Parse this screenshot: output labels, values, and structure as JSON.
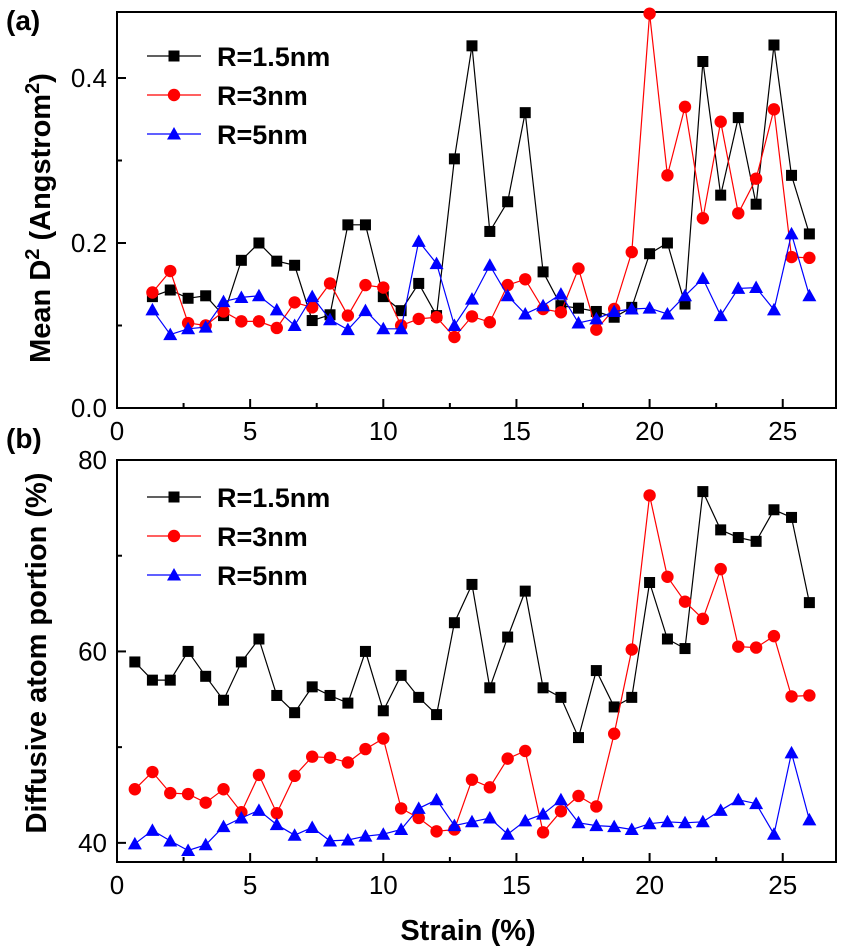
{
  "chart_data": [
    {
      "panel_label": "(a)",
      "type": "line",
      "xlabel": "",
      "ylabel": "Mean D2 (Angstrom2)",
      "ylabel_parts": [
        "Mean D",
        "2",
        " (Angstrom",
        "2",
        ")"
      ],
      "xlim": [
        0,
        27
      ],
      "ylim": [
        0,
        0.48
      ],
      "xticks": [
        0,
        5,
        10,
        15,
        20,
        25
      ],
      "yticks": [
        0.0,
        0.2,
        0.4
      ],
      "ytick_labels": [
        "0.0",
        "0.2",
        "0.4"
      ],
      "legend_position": "top-left",
      "series": [
        {
          "name": "R=1.5nm",
          "color": "#000000",
          "marker": "square",
          "x": [
            1.33,
            2.0,
            2.67,
            3.33,
            4.0,
            4.67,
            5.33,
            6.0,
            6.67,
            7.33,
            8.0,
            8.67,
            9.33,
            10.0,
            10.67,
            11.33,
            12.0,
            12.67,
            13.33,
            14.0,
            14.67,
            15.33,
            16.0,
            16.67,
            17.33,
            18.0,
            18.67,
            19.33,
            20.0,
            20.67,
            21.33,
            22.0,
            22.67,
            23.33,
            24.0,
            24.67,
            25.33,
            26.0
          ],
          "y": [
            0.135,
            0.143,
            0.133,
            0.136,
            0.112,
            0.179,
            0.2,
            0.178,
            0.173,
            0.106,
            0.113,
            0.222,
            0.222,
            0.135,
            0.118,
            0.151,
            0.112,
            0.302,
            0.439,
            0.214,
            0.25,
            0.358,
            0.165,
            0.124,
            0.121,
            0.117,
            0.11,
            0.122,
            0.187,
            0.2,
            0.126,
            0.42,
            0.258,
            0.352,
            0.247,
            0.44,
            0.282,
            0.211
          ]
        },
        {
          "name": "R=3nm",
          "color": "#ff0000",
          "marker": "circle",
          "x": [
            1.33,
            2.0,
            2.67,
            3.33,
            4.0,
            4.67,
            5.33,
            6.0,
            6.67,
            7.33,
            8.0,
            8.67,
            9.33,
            10.0,
            10.67,
            11.33,
            12.0,
            12.67,
            13.33,
            14.0,
            14.67,
            15.33,
            16.0,
            16.67,
            17.33,
            18.0,
            18.67,
            19.33,
            20.0,
            20.67,
            21.33,
            22.0,
            22.67,
            23.33,
            24.0,
            24.67,
            25.33,
            26.0
          ],
          "y": [
            0.14,
            0.166,
            0.103,
            0.1,
            0.117,
            0.105,
            0.105,
            0.097,
            0.128,
            0.122,
            0.151,
            0.112,
            0.149,
            0.146,
            0.1,
            0.108,
            0.11,
            0.086,
            0.111,
            0.104,
            0.149,
            0.156,
            0.12,
            0.116,
            0.169,
            0.095,
            0.12,
            0.189,
            0.478,
            0.282,
            0.365,
            0.23,
            0.347,
            0.236,
            0.278,
            0.362,
            0.183,
            0.182
          ]
        },
        {
          "name": "R=5nm",
          "color": "#0000ff",
          "marker": "triangle",
          "x": [
            1.33,
            2.0,
            2.67,
            3.33,
            4.0,
            4.67,
            5.33,
            6.0,
            6.67,
            7.33,
            8.0,
            8.67,
            9.33,
            10.0,
            10.67,
            11.33,
            12.0,
            12.67,
            13.33,
            14.0,
            14.67,
            15.33,
            16.0,
            16.67,
            17.33,
            18.0,
            18.67,
            19.33,
            20.0,
            20.67,
            21.33,
            22.0,
            22.67,
            23.33,
            24.0,
            24.67,
            25.33,
            26.0
          ],
          "y": [
            0.119,
            0.089,
            0.096,
            0.098,
            0.129,
            0.134,
            0.136,
            0.119,
            0.1,
            0.135,
            0.107,
            0.095,
            0.118,
            0.096,
            0.096,
            0.202,
            0.175,
            0.1,
            0.132,
            0.173,
            0.136,
            0.114,
            0.124,
            0.138,
            0.103,
            0.108,
            0.117,
            0.12,
            0.121,
            0.114,
            0.136,
            0.157,
            0.112,
            0.145,
            0.146,
            0.119,
            0.211,
            0.136
          ]
        }
      ]
    },
    {
      "panel_label": "(b)",
      "type": "line",
      "xlabel": "Strain (%)",
      "ylabel": "Diffusive atom portion (%)",
      "xlim": [
        0,
        27
      ],
      "ylim": [
        38,
        80
      ],
      "xticks": [
        0,
        5,
        10,
        15,
        20,
        25
      ],
      "yticks": [
        40,
        60,
        80
      ],
      "ytick_labels": [
        "40",
        "60",
        "80"
      ],
      "legend_position": "top-left",
      "series": [
        {
          "name": "R=1.5nm",
          "color": "#000000",
          "marker": "square",
          "x": [
            0.67,
            1.33,
            2.0,
            2.67,
            3.33,
            4.0,
            4.67,
            5.33,
            6.0,
            6.67,
            7.33,
            8.0,
            8.67,
            9.33,
            10.0,
            10.67,
            11.33,
            12.0,
            12.67,
            13.33,
            14.0,
            14.67,
            15.33,
            16.0,
            16.67,
            17.33,
            18.0,
            18.67,
            19.33,
            20.0,
            20.67,
            21.33,
            22.0,
            22.67,
            23.33,
            24.0,
            24.67,
            25.33,
            26.0
          ],
          "y": [
            58.9,
            57.0,
            57.0,
            60.0,
            57.4,
            54.9,
            58.9,
            61.3,
            55.4,
            53.6,
            56.3,
            55.4,
            54.6,
            60.0,
            53.8,
            57.5,
            55.2,
            53.4,
            63.0,
            67.0,
            56.2,
            61.5,
            66.3,
            56.2,
            55.2,
            51.0,
            58.0,
            54.2,
            55.2,
            67.2,
            61.3,
            60.3,
            76.7,
            72.7,
            71.9,
            71.5,
            74.8,
            74.0,
            65.1
          ]
        },
        {
          "name": "R=3nm",
          "color": "#ff0000",
          "marker": "circle",
          "x": [
            0.67,
            1.33,
            2.0,
            2.67,
            3.33,
            4.0,
            4.67,
            5.33,
            6.0,
            6.67,
            7.33,
            8.0,
            8.67,
            9.33,
            10.0,
            10.67,
            11.33,
            12.0,
            12.67,
            13.33,
            14.0,
            14.67,
            15.33,
            16.0,
            16.67,
            17.33,
            18.0,
            18.67,
            19.33,
            20.0,
            20.67,
            21.33,
            22.0,
            22.67,
            23.33,
            24.0,
            24.67,
            25.33,
            26.0
          ],
          "y": [
            45.6,
            47.4,
            45.2,
            45.1,
            44.2,
            45.6,
            43.2,
            47.1,
            43.1,
            47.0,
            49.0,
            48.9,
            48.4,
            49.8,
            50.9,
            43.6,
            42.6,
            41.2,
            41.4,
            46.6,
            45.8,
            48.8,
            49.6,
            41.1,
            43.3,
            44.9,
            43.8,
            51.4,
            60.2,
            76.3,
            67.8,
            65.2,
            63.4,
            68.6,
            60.5,
            60.4,
            61.6,
            55.3,
            55.4
          ]
        },
        {
          "name": "R=5nm",
          "color": "#0000ff",
          "marker": "triangle",
          "x": [
            0.67,
            1.33,
            2.0,
            2.67,
            3.33,
            4.0,
            4.67,
            5.33,
            6.0,
            6.67,
            7.33,
            8.0,
            8.67,
            9.33,
            10.0,
            10.67,
            11.33,
            12.0,
            12.67,
            13.33,
            14.0,
            14.67,
            15.33,
            16.0,
            16.67,
            17.33,
            18.0,
            18.67,
            19.33,
            20.0,
            20.67,
            21.33,
            22.0,
            22.67,
            23.33,
            24.0,
            24.67,
            25.33,
            26.0
          ],
          "y": [
            39.9,
            41.3,
            40.2,
            39.2,
            39.8,
            41.7,
            42.6,
            43.4,
            41.9,
            40.8,
            41.6,
            40.2,
            40.3,
            40.7,
            40.9,
            41.4,
            43.6,
            44.5,
            41.8,
            42.2,
            42.6,
            40.9,
            42.3,
            43.0,
            44.5,
            42.1,
            41.8,
            41.7,
            41.4,
            42.0,
            42.2,
            42.1,
            42.2,
            43.4,
            44.5,
            44.1,
            40.9,
            49.4,
            42.4
          ]
        }
      ]
    }
  ]
}
